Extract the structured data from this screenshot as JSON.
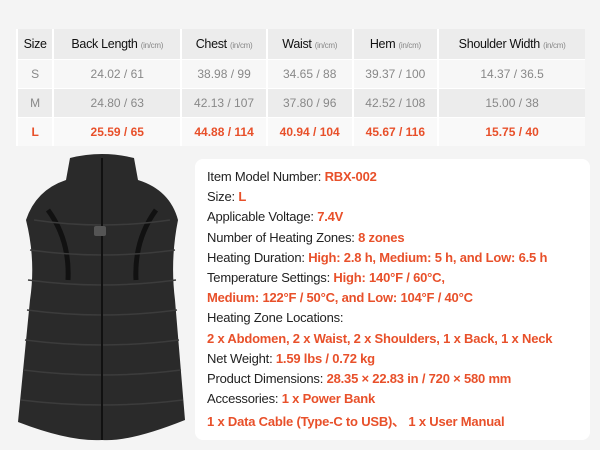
{
  "table": {
    "headers": [
      {
        "label": "Size",
        "unit": ""
      },
      {
        "label": "Back Length",
        "unit": "(in/cm)"
      },
      {
        "label": "Chest",
        "unit": "(in/cm)"
      },
      {
        "label": "Waist",
        "unit": "(in/cm)"
      },
      {
        "label": "Hem",
        "unit": "(in/cm)"
      },
      {
        "label": "Shoulder Width",
        "unit": "(in/cm)"
      }
    ],
    "rows": [
      [
        "S",
        "24.02 / 61",
        "38.98 / 99",
        "34.65 / 88",
        "39.37 / 100",
        "14.37 / 36.5"
      ],
      [
        "M",
        "24.80 / 63",
        "42.13 / 107",
        "37.80 / 96",
        "42.52 / 108",
        "15.00 / 38"
      ],
      [
        "L",
        "25.59 / 65",
        "44.88 / 114",
        "40.94 / 104",
        "45.67 / 116",
        "15.75 / 40"
      ]
    ],
    "highlight_color": "#e8502a"
  },
  "specs": [
    {
      "label": "Item Model Number: ",
      "value": "RBX-002"
    },
    {
      "label": "Size: ",
      "value": "L"
    },
    {
      "label": "Applicable Voltage: ",
      "value": "7.4V"
    },
    {
      "label": "Number of Heating Zones: ",
      "value": "8 zones"
    },
    {
      "label": "Heating Duration: ",
      "value": "High: 2.8 h, Medium: 5 h, and Low: 6.5 h"
    },
    {
      "label": "Temperature Settings: ",
      "value": "High: 140°F / 60°C,"
    },
    {
      "label": "",
      "value": "Medium: 122°F / 50°C, and Low: 104°F / 40°C"
    },
    {
      "label": "Heating Zone Locations:",
      "value": ""
    },
    {
      "label": "",
      "value": "2 x Abdomen, 2 x Waist, 2 x Shoulders, 1 x Back, 1 x Neck"
    },
    {
      "label": "Net Weight: ",
      "value": "1.59 lbs / 0.72 kg"
    },
    {
      "label": "Product Dimensions: ",
      "value": "28.35 × 22.83 in / 720 × 580 mm"
    },
    {
      "label": "Accessories: ",
      "value": "1 x Power Bank"
    },
    {
      "label": "",
      "value": "1 x Data Cable (Type-C to USB)、 1 x User Manual"
    }
  ]
}
